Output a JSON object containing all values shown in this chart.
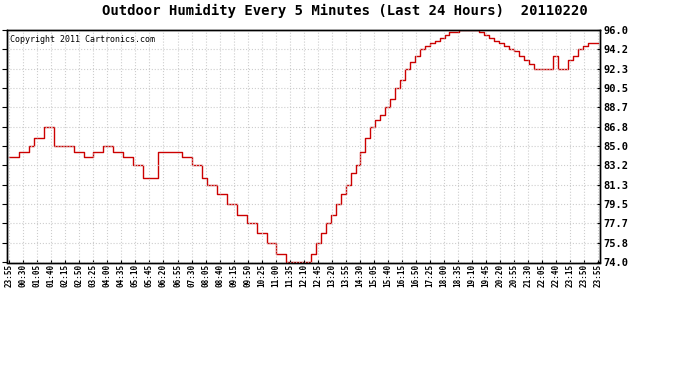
{
  "title": "Outdoor Humidity Every 5 Minutes (Last 24 Hours)  20110220",
  "copyright": "Copyright 2011 Cartronics.com",
  "ylim": [
    74.0,
    96.0
  ],
  "yticks": [
    74.0,
    75.8,
    77.7,
    79.5,
    81.3,
    83.2,
    85.0,
    86.8,
    88.7,
    90.5,
    92.3,
    94.2,
    96.0
  ],
  "line_color": "#cc0000",
  "bg_color": "#ffffff",
  "grid_color": "#c8c8c8",
  "time_labels": [
    "23:55",
    "00:30",
    "01:05",
    "01:40",
    "02:15",
    "02:50",
    "03:25",
    "04:00",
    "04:35",
    "05:10",
    "05:45",
    "06:20",
    "06:55",
    "07:30",
    "08:05",
    "08:40",
    "09:15",
    "09:50",
    "10:25",
    "11:00",
    "11:35",
    "12:10",
    "12:45",
    "13:20",
    "13:55",
    "14:30",
    "15:05",
    "15:40",
    "16:15",
    "16:50",
    "17:25",
    "18:00",
    "18:35",
    "19:10",
    "19:45",
    "20:20",
    "20:55",
    "21:30",
    "22:05",
    "22:40",
    "23:15",
    "23:50",
    "23:55"
  ],
  "tick_step": 7,
  "humidity_values": [
    84.0,
    84.0,
    84.5,
    84.5,
    85.0,
    85.8,
    85.8,
    86.8,
    86.8,
    85.0,
    85.0,
    85.0,
    85.0,
    84.5,
    84.5,
    84.0,
    84.0,
    84.5,
    84.5,
    85.0,
    85.0,
    84.5,
    84.5,
    84.0,
    84.0,
    83.2,
    83.2,
    82.0,
    82.0,
    82.0,
    84.5,
    84.5,
    84.5,
    84.5,
    84.5,
    84.0,
    84.0,
    83.2,
    83.2,
    82.0,
    81.3,
    81.3,
    80.5,
    80.5,
    79.5,
    79.5,
    78.5,
    78.5,
    77.7,
    77.7,
    76.8,
    76.8,
    75.8,
    75.8,
    74.8,
    74.8,
    74.0,
    74.0,
    74.0,
    74.0,
    74.0,
    74.8,
    75.8,
    76.8,
    77.7,
    78.5,
    79.5,
    80.5,
    81.3,
    82.5,
    83.2,
    84.5,
    85.8,
    86.8,
    87.5,
    88.0,
    88.7,
    89.5,
    90.5,
    91.3,
    92.3,
    93.0,
    93.5,
    94.2,
    94.5,
    94.8,
    95.0,
    95.2,
    95.5,
    95.8,
    95.8,
    96.0,
    96.0,
    96.0,
    96.0,
    95.8,
    95.5,
    95.2,
    95.0,
    94.8,
    94.5,
    94.2,
    94.0,
    93.5,
    93.2,
    92.8,
    92.3,
    92.3,
    92.3,
    92.3,
    93.5,
    92.3,
    92.3,
    93.2,
    93.5,
    94.2,
    94.5,
    94.8,
    94.8,
    94.8
  ]
}
